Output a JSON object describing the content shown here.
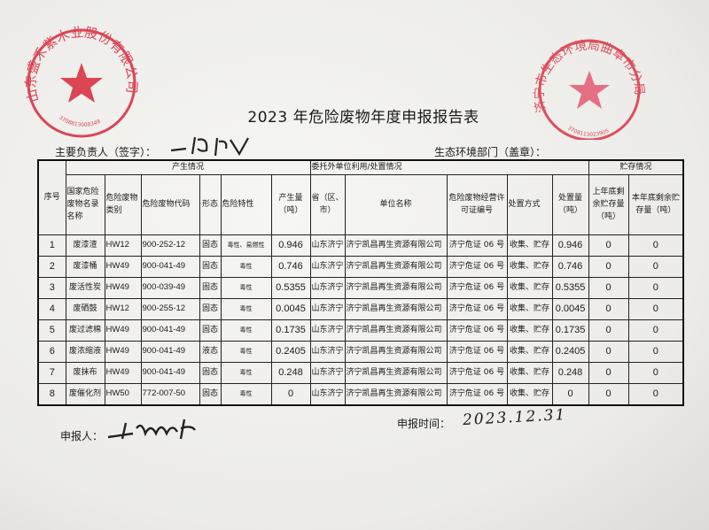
{
  "title": "2023 年危险废物年度申报报告表",
  "responsible_label": "主要负责人（签字）：",
  "env_dept_label": "生态环境部门（盖章）：",
  "table": {
    "group_headers": {
      "seq": "序号",
      "production": "产生情况",
      "entrusted": "委托外单位利用/处置情况",
      "storage": "贮存情况"
    },
    "columns": [
      "国家危险废物名录名称",
      "危险废物类别",
      "危险废物代码",
      "形态",
      "危险特性",
      "产生量（吨）",
      "省（区、市）",
      "单位名称",
      "危险废物经营许可证编号",
      "处置方式",
      "处置量（吨）",
      "上年底剩余贮存量（吨）",
      "本年底剩余贮存量（吨）"
    ],
    "rows": [
      [
        "1",
        "废漆渣",
        "HW12",
        "900-252-12",
        "固态",
        "毒性、易燃性",
        "0.946",
        "山东济宁",
        "济宁凯昌再生资源有限公司",
        "济宁危证 06 号",
        "收集、贮存",
        "0.946",
        "0",
        "0"
      ],
      [
        "2",
        "废漆桶",
        "HW49",
        "900-041-49",
        "固态",
        "毒性",
        "0.746",
        "山东济宁",
        "济宁凯昌再生资源有限公司",
        "济宁危证 06 号",
        "收集、贮存",
        "0.746",
        "0",
        "0"
      ],
      [
        "3",
        "废活性炭",
        "HW49",
        "900-039-49",
        "固态",
        "毒性",
        "0.5355",
        "山东济宁",
        "济宁凯昌再生资源有限公司",
        "济宁危证 06 号",
        "收集、贮存",
        "0.5355",
        "0",
        "0"
      ],
      [
        "4",
        "废硒鼓",
        "HW12",
        "900-255-12",
        "固态",
        "毒性",
        "0.0045",
        "山东济宁",
        "济宁凯昌再生资源有限公司",
        "济宁危证 06 号",
        "收集、贮存",
        "0.0045",
        "0",
        "0"
      ],
      [
        "5",
        "废过滤棉",
        "HW49",
        "900-041-49",
        "固态",
        "毒性",
        "0.1735",
        "山东济宁",
        "济宁凯昌再生资源有限公司",
        "济宁危证 06 号",
        "收集、贮存",
        "0.1735",
        "0",
        "0"
      ],
      [
        "6",
        "废浓缩液",
        "HW49",
        "900-041-49",
        "液态",
        "毒性",
        "0.2405",
        "山东济宁",
        "济宁凯昌再生资源有限公司",
        "济宁危证 06 号",
        "收集、贮存",
        "0.2405",
        "0",
        "0"
      ],
      [
        "7",
        "废抹布",
        "HW49",
        "900-041-49",
        "固态",
        "毒性",
        "0.248",
        "山东济宁",
        "济宁凯昌再生资源有限公司",
        "济宁危证 06 号",
        "收集、贮存",
        "0.248",
        "0",
        "0"
      ],
      [
        "8",
        "废催化剂",
        "HW50",
        "772-007-50",
        "固态",
        "毒性",
        "0",
        "山东济宁",
        "济宁凯昌再生资源有限公司",
        "济宁危证 06 号",
        "收集、贮存",
        "0",
        "0",
        "0"
      ]
    ]
  },
  "declarant_label": "申报人：",
  "declare_time_label": "申报时间：",
  "declare_time_handwritten": "2023.12.31",
  "stamps": {
    "company": {
      "text": "山东盛禾紫木业股份有限公司",
      "number": "3708813008349",
      "color": "#d9283a"
    },
    "env_bureau": {
      "text": "济宁市生态环境局曲阜市分局",
      "number": "3708113023905",
      "color": "#d9283a"
    }
  }
}
